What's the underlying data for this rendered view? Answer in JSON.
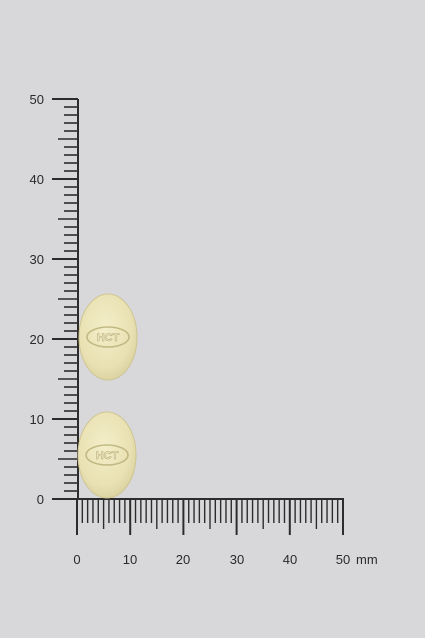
{
  "ruler": {
    "unit_label": "mm",
    "vertical_labels": [
      "0",
      "10",
      "20",
      "30",
      "40",
      "50"
    ],
    "horizontal_labels": [
      "0",
      "10",
      "20",
      "30",
      "40",
      "50"
    ],
    "tick_color": "#2c2c2c",
    "background_color": "#d8d8da"
  },
  "tablets": [
    {
      "imprint": "HCT",
      "color": "#ece5bb"
    },
    {
      "imprint": "HCT",
      "color": "#ece5bb"
    }
  ]
}
